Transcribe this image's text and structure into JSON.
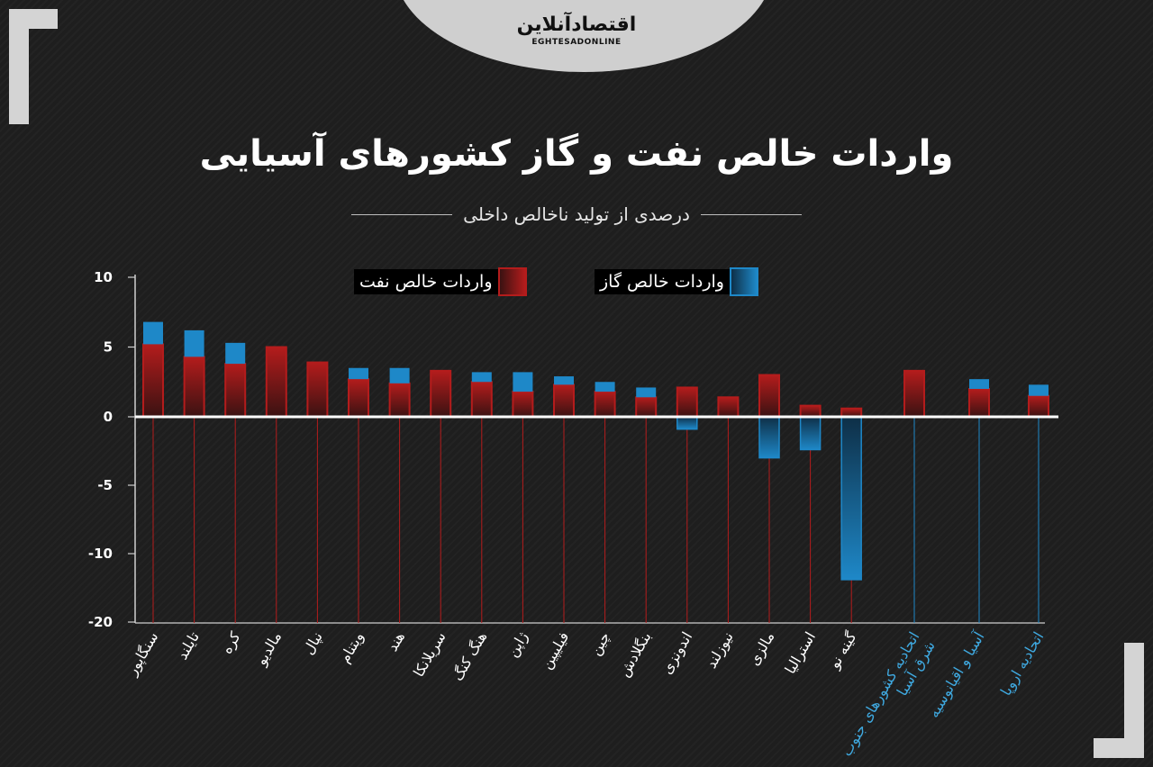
{
  "header": {
    "logo_fa": "اقتصادآنلاین",
    "logo_en": "EGHTESADONLINE",
    "title": "واردات خالص نفت و گاز کشورهای آسیایی",
    "subtitle": "درصدی از تولید ناخالص داخلی"
  },
  "legend": {
    "gas_label": "واردات خالص گاز",
    "oil_label": "واردات خالص نفت"
  },
  "colors": {
    "oil": "#b41c1c",
    "oil_dark": "#3a1212",
    "gas": "#1e88c8",
    "gas_dark": "#0e2f47",
    "background": "#1e1e1e",
    "zero_line": "#ffffff",
    "country_label": "#ffffff",
    "region_label": "#3fa9e0"
  },
  "chart_data": {
    "type": "bar",
    "stacked": true,
    "ylim": [
      -20,
      10
    ],
    "yticks": [
      "10",
      "5",
      "0",
      "-5",
      "-10",
      "-20"
    ],
    "categories": [
      "سنگاپور",
      "تایلند",
      "کره",
      "مالدیو",
      "نپال",
      "ویتنام",
      "هند",
      "سریلانکا",
      "هنگ کنگ",
      "ژاپن",
      "فیلیپین",
      "چین",
      "بنگلادش",
      "اندونزی",
      "نیوزلند",
      "مالزی",
      "استرالیا",
      "گینه نو",
      "اتحادیه کشورهای جنوب شرق آسیا",
      "آسیا و اقیانوسیه",
      "اتحادیه اروپا"
    ],
    "category_type": [
      "country",
      "country",
      "country",
      "country",
      "country",
      "country",
      "country",
      "country",
      "country",
      "country",
      "country",
      "country",
      "country",
      "country",
      "country",
      "country",
      "country",
      "country",
      "region",
      "region",
      "region"
    ],
    "series": [
      {
        "name": "واردات خالص نفت",
        "values": [
          5.2,
          4.3,
          3.8,
          5.0,
          3.9,
          2.7,
          2.4,
          3.3,
          2.5,
          1.8,
          2.3,
          1.8,
          1.4,
          2.1,
          1.4,
          3.0,
          0.8,
          0.6,
          3.3,
          2.0,
          1.5
        ]
      },
      {
        "name": "واردات خالص گاز",
        "values": [
          1.6,
          1.9,
          1.5,
          0,
          0,
          0.8,
          1.1,
          0,
          0.7,
          1.4,
          0.6,
          0.7,
          0.7,
          -0.9,
          0,
          -3.0,
          -2.4,
          -13.8,
          0,
          0.7,
          0.8
        ]
      }
    ]
  }
}
